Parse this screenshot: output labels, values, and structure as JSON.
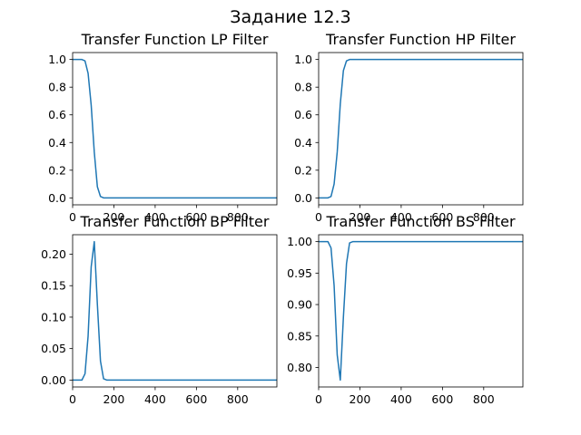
{
  "figure": {
    "suptitle": "Задание 12.3"
  },
  "colors": {
    "line": "#1f77b4",
    "axes": "#000000",
    "background": "#ffffff"
  },
  "chart_data": [
    {
      "type": "line",
      "title": "Transfer Function LP Filter",
      "xlabel": "",
      "ylabel": "",
      "xlim": [
        0,
        990
      ],
      "ylim": [
        -0.05,
        1.05
      ],
      "xticks": [
        0,
        200,
        400,
        600,
        800
      ],
      "yticks": [
        0.0,
        0.2,
        0.4,
        0.6,
        0.8,
        1.0
      ],
      "ytick_labels": [
        "0.0",
        "0.2",
        "0.4",
        "0.6",
        "0.8",
        "1.0"
      ],
      "grid": false,
      "series": [
        {
          "x": [
            0,
            15,
            30,
            45,
            60,
            75,
            90,
            105,
            120,
            135,
            150,
            165,
            180,
            990
          ],
          "values": [
            1.0,
            1.0,
            1.0,
            1.0,
            0.99,
            0.9,
            0.67,
            0.33,
            0.08,
            0.01,
            0.0,
            0.0,
            0.0,
            0.0
          ]
        }
      ]
    },
    {
      "type": "line",
      "title": "Transfer Function HP Filter",
      "xlabel": "",
      "ylabel": "",
      "xlim": [
        0,
        990
      ],
      "ylim": [
        -0.05,
        1.05
      ],
      "xticks": [
        0,
        200,
        400,
        600,
        800
      ],
      "yticks": [
        0.0,
        0.2,
        0.4,
        0.6,
        0.8,
        1.0
      ],
      "ytick_labels": [
        "0.0",
        "0.2",
        "0.4",
        "0.6",
        "0.8",
        "1.0"
      ],
      "grid": false,
      "series": [
        {
          "x": [
            0,
            15,
            30,
            45,
            60,
            75,
            90,
            105,
            120,
            135,
            150,
            165,
            180,
            990
          ],
          "values": [
            0.0,
            0.0,
            0.0,
            0.0,
            0.01,
            0.1,
            0.33,
            0.68,
            0.92,
            0.99,
            1.0,
            1.0,
            1.0,
            1.0
          ]
        }
      ]
    },
    {
      "type": "line",
      "title": "Transfer Function BP Filter",
      "xlabel": "",
      "ylabel": "",
      "xlim": [
        0,
        990
      ],
      "ylim": [
        -0.011,
        0.231
      ],
      "xticks": [
        0,
        200,
        400,
        600,
        800
      ],
      "yticks": [
        0.0,
        0.05,
        0.1,
        0.15,
        0.2
      ],
      "ytick_labels": [
        "0.00",
        "0.05",
        "0.10",
        "0.15",
        "0.20"
      ],
      "grid": false,
      "series": [
        {
          "x": [
            0,
            15,
            30,
            45,
            60,
            75,
            90,
            105,
            120,
            135,
            150,
            165,
            180,
            990
          ],
          "values": [
            0.0,
            0.0,
            0.0,
            0.0,
            0.01,
            0.07,
            0.18,
            0.22,
            0.12,
            0.03,
            0.002,
            0.0,
            0.0,
            0.0
          ]
        }
      ]
    },
    {
      "type": "line",
      "title": "Transfer Function BS Filter",
      "xlabel": "",
      "ylabel": "",
      "xlim": [
        0,
        990
      ],
      "ylim": [
        0.769,
        1.011
      ],
      "xticks": [
        0,
        200,
        400,
        600,
        800
      ],
      "yticks": [
        0.8,
        0.85,
        0.9,
        0.95,
        1.0
      ],
      "ytick_labels": [
        "0.80",
        "0.85",
        "0.90",
        "0.95",
        "1.00"
      ],
      "grid": false,
      "series": [
        {
          "x": [
            0,
            15,
            30,
            45,
            60,
            75,
            90,
            105,
            120,
            135,
            150,
            165,
            180,
            990
          ],
          "values": [
            1.0,
            1.0,
            1.0,
            1.0,
            0.99,
            0.93,
            0.82,
            0.78,
            0.88,
            0.965,
            0.998,
            1.0,
            1.0,
            1.0
          ]
        }
      ]
    }
  ]
}
